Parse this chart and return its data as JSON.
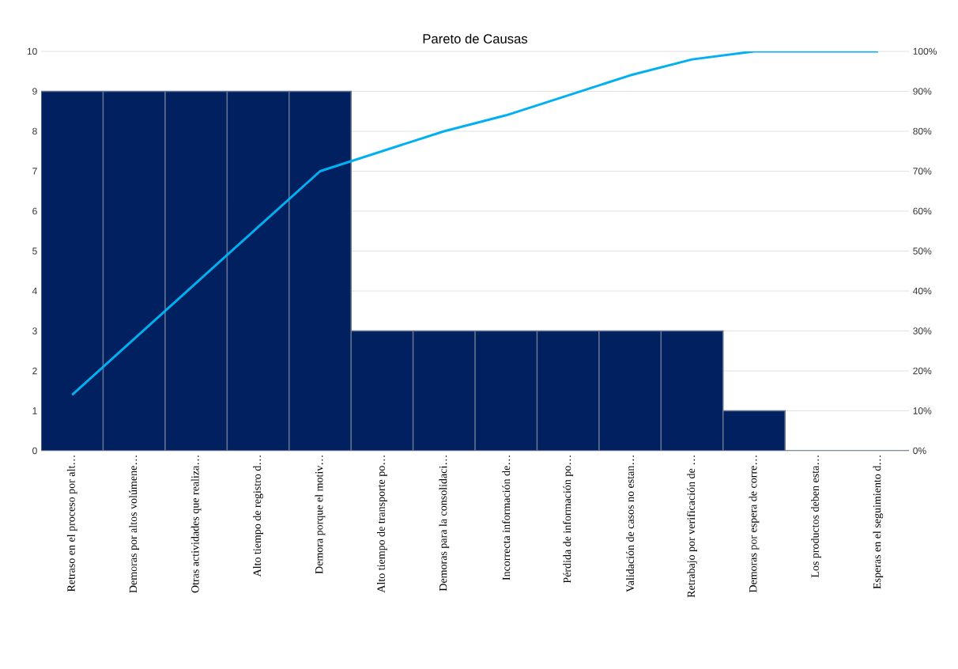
{
  "chart_data": {
    "type": "bar",
    "title": "Pareto de Causas",
    "categories": [
      "Retraso en el proceso por alt…",
      "Demoras por altos volúmene…",
      "Otras actividades que realiza…",
      "Alto tiempo de registro d…",
      "Demora porque el motiv…",
      "Alto tiempo de transporte po…",
      "Demoras para la consolidaci…",
      "Incorrecta información de…",
      "Pérdida de información po…",
      "Validación de casos no estan…",
      "Retrabajo por verificación de …",
      "Demoras por espera de corre…",
      "Los productos deben esta…",
      "Esperas en el seguimiento d…"
    ],
    "series": [
      {
        "color": "#002060",
        "values": [
          9,
          9,
          9,
          9,
          9,
          3,
          3,
          3,
          3,
          3,
          3,
          1,
          0,
          0
        ]
      },
      {
        "type": "line",
        "axis": "y2",
        "color": "#00b0f0",
        "values": [
          14,
          28,
          42,
          56,
          70,
          75,
          80,
          84,
          89,
          94,
          98,
          100,
          100,
          100
        ]
      }
    ],
    "ylim": [
      0,
      10
    ],
    "yticks": [
      0,
      1,
      2,
      3,
      4,
      5,
      6,
      7,
      8,
      9,
      10
    ],
    "y2lim": [
      0,
      100
    ],
    "y2ticks": [
      {
        "value": 0,
        "label": "0%"
      },
      {
        "value": 10,
        "label": "10%"
      },
      {
        "value": 20,
        "label": "20%"
      },
      {
        "value": 30,
        "label": "30%"
      },
      {
        "value": 40,
        "label": "40%"
      },
      {
        "value": 50,
        "label": "50%"
      },
      {
        "value": 60,
        "label": "60%"
      },
      {
        "value": 70,
        "label": "70%"
      },
      {
        "value": 80,
        "label": "80%"
      },
      {
        "value": 90,
        "label": "90%"
      },
      {
        "value": 100,
        "label": "100%"
      }
    ],
    "grid": "y",
    "marker": "none",
    "line_style": "solid"
  }
}
